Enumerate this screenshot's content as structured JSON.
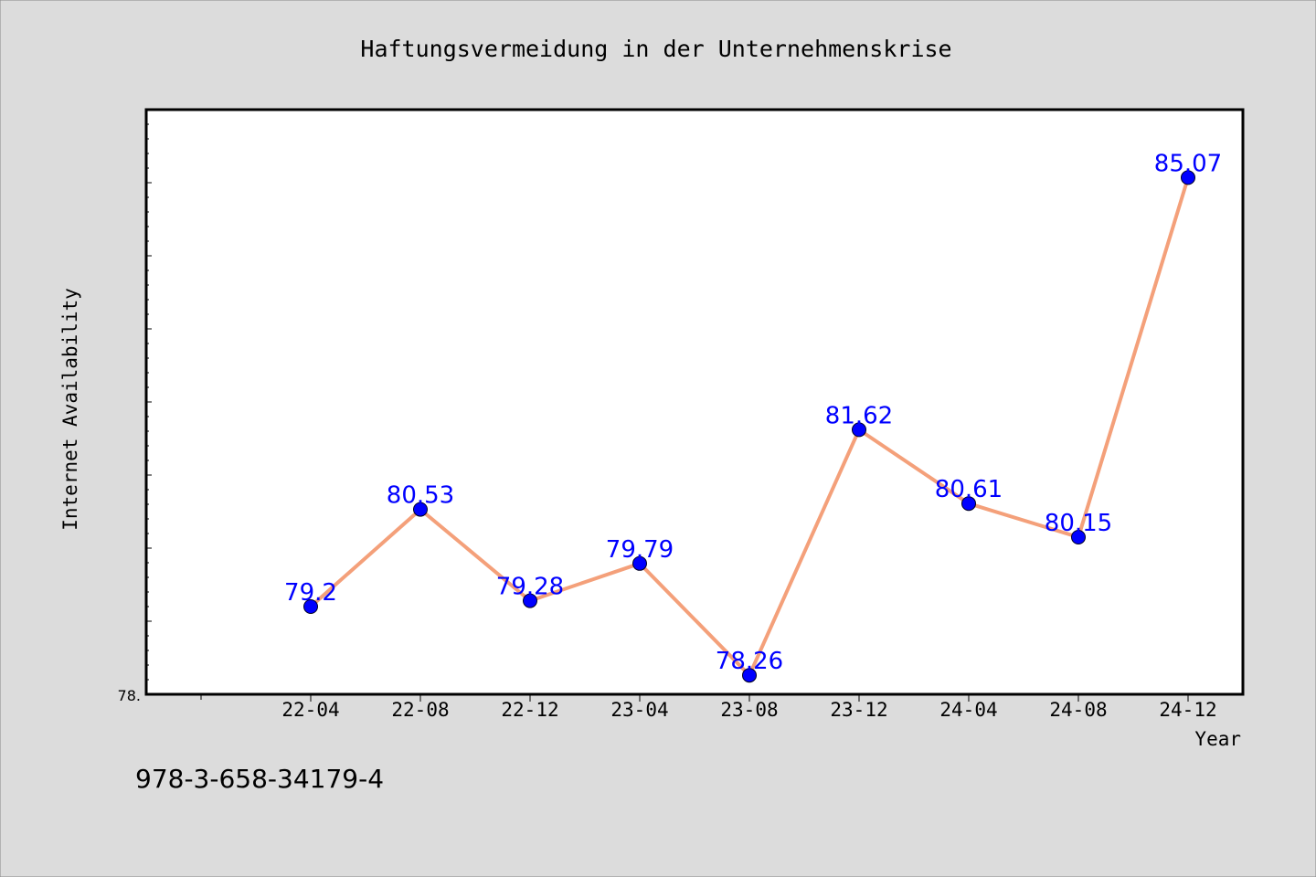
{
  "chart_data": {
    "type": "line",
    "title": "Haftungsvermeidung in der Unternehmenskrise",
    "xlabel": "Year",
    "ylabel": "Internet Availability",
    "categories": [
      "22-04",
      "22-08",
      "22-12",
      "23-04",
      "23-08",
      "23-12",
      "24-04",
      "24-08",
      "24-12"
    ],
    "series": [
      {
        "values": [
          79.2,
          80.53,
          79.28,
          79.79,
          78.26,
          81.62,
          80.61,
          80.15,
          85.07
        ],
        "labels": [
          "79.2",
          "80.53",
          "79.28",
          "79.79",
          "78.26",
          "81.62",
          "80.61",
          "80.15",
          "85.07"
        ]
      }
    ],
    "ylim": [
      78.0,
      86.0
    ],
    "y_tick_labels": [
      "78."
    ],
    "grid": false,
    "line_color": "#f4a07a",
    "marker_color": "#0000ff",
    "label_color": "#0000ff"
  },
  "annotation": "978-3-658-34179-4"
}
